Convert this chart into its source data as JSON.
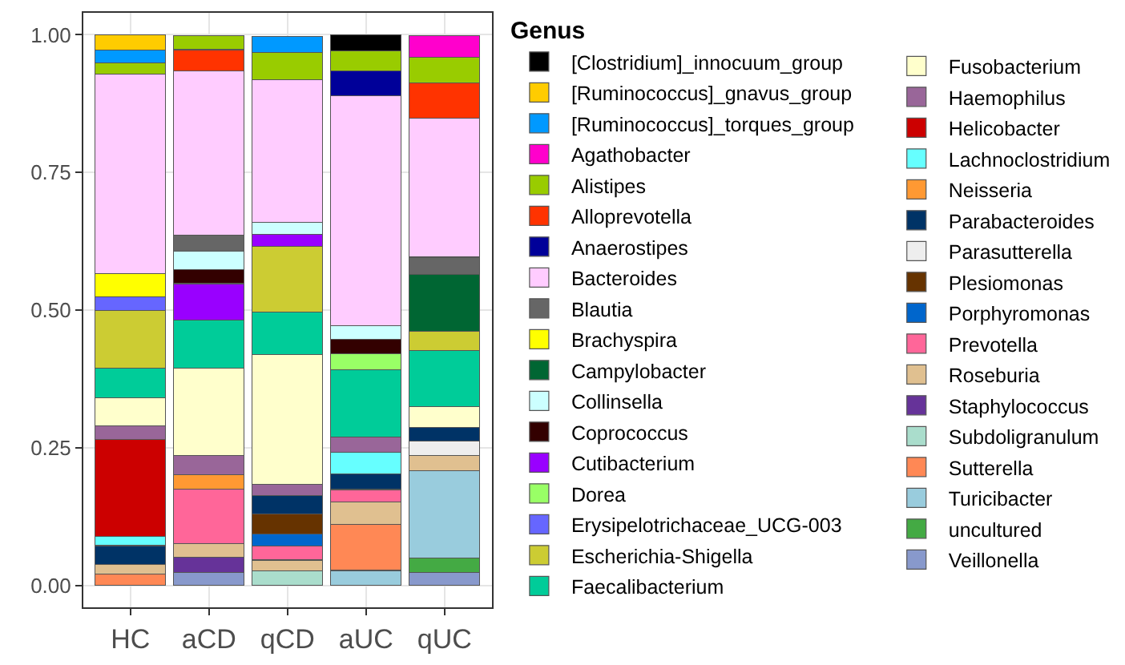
{
  "chart_data": {
    "type": "bar",
    "stacked": true,
    "legend_title": "Genus",
    "legend": "right",
    "grid": true,
    "categories": [
      "HC",
      "aCD",
      "qCD",
      "aUC",
      "qUC"
    ],
    "ylim": [
      -0.04,
      1.04
    ],
    "yticks": [
      {
        "value": 0,
        "label": "0.00"
      },
      {
        "value": 0.25,
        "label": "0.25"
      },
      {
        "value": 0.5,
        "label": "0.50"
      },
      {
        "value": 0.75,
        "label": "0.75"
      },
      {
        "value": 1,
        "label": "1.00"
      }
    ],
    "series": [
      {
        "name": "Veillonella",
        "color": "#8899cc",
        "values": [
          null,
          0.023,
          null,
          null,
          0.023
        ]
      },
      {
        "name": "uncultured",
        "color": "#44aa44",
        "values": [
          null,
          null,
          null,
          null,
          0.027
        ]
      },
      {
        "name": "Turicibacter",
        "color": "#99ccdd",
        "values": [
          null,
          null,
          null,
          0.027,
          0.158
        ]
      },
      {
        "name": "Sutterella",
        "color": "#ff8855",
        "values": [
          0.021,
          null,
          null,
          0.084,
          null
        ]
      },
      {
        "name": "Subdoligranulum",
        "color": "#aaddcc",
        "values": [
          null,
          null,
          0.026,
          null,
          null
        ]
      },
      {
        "name": "Staphylococcus",
        "color": "#663399",
        "values": [
          null,
          0.028,
          null,
          null,
          null
        ]
      },
      {
        "name": "Roseburia",
        "color": "#e0c090",
        "values": [
          0.017,
          0.025,
          0.02,
          0.04,
          0.028
        ]
      },
      {
        "name": "Prevotella",
        "color": "#ff6699",
        "values": [
          null,
          0.099,
          0.025,
          0.023,
          null
        ]
      },
      {
        "name": "Porphyromonas",
        "color": "#0066cc",
        "values": [
          null,
          null,
          0.022,
          null,
          null
        ]
      },
      {
        "name": "Plesiomonas",
        "color": "#663300",
        "values": [
          null,
          null,
          0.037,
          null,
          null
        ]
      },
      {
        "name": "Parasutterella",
        "color": "#eeeeee",
        "values": [
          null,
          null,
          null,
          null,
          0.026
        ]
      },
      {
        "name": "Parabacteroides",
        "color": "#003366",
        "values": [
          0.034,
          null,
          0.033,
          0.028,
          0.025
        ]
      },
      {
        "name": "Neisseria",
        "color": "#ff9933",
        "values": [
          null,
          0.026,
          null,
          null,
          null
        ]
      },
      {
        "name": "Lachnoclostridium",
        "color": "#66ffff",
        "values": [
          0.017,
          null,
          null,
          0.04,
          null
        ]
      },
      {
        "name": "Helicobacter",
        "color": "#cc0000",
        "values": [
          0.176,
          null,
          null,
          null,
          null
        ]
      },
      {
        "name": "Haemophilus",
        "color": "#996699",
        "values": [
          0.025,
          0.035,
          0.02,
          0.027,
          null
        ]
      },
      {
        "name": "Fusobacterium",
        "color": "#ffffcc",
        "values": [
          0.051,
          0.159,
          0.236,
          null,
          0.038
        ]
      },
      {
        "name": "Faecalibacterium",
        "color": "#00cc99",
        "values": [
          0.054,
          0.087,
          0.077,
          0.122,
          0.102
        ]
      },
      {
        "name": "Escherichia-Shigella",
        "color": "#cccc33",
        "values": [
          0.104,
          null,
          0.12,
          null,
          0.034
        ]
      },
      {
        "name": "Erysipelotrichaceae_UCG-003",
        "color": "#6666ff",
        "values": [
          0.025,
          null,
          null,
          null,
          null
        ]
      },
      {
        "name": "Dorea",
        "color": "#99ff66",
        "values": [
          null,
          null,
          null,
          0.03,
          null
        ]
      },
      {
        "name": "Cutibacterium",
        "color": "#9900ff",
        "values": [
          null,
          0.066,
          0.022,
          null,
          null
        ]
      },
      {
        "name": "Coprococcus",
        "color": "#330000",
        "values": [
          null,
          0.025,
          null,
          0.026,
          null
        ]
      },
      {
        "name": "Collinsella",
        "color": "#ccffff",
        "values": [
          null,
          0.034,
          0.021,
          0.025,
          null
        ]
      },
      {
        "name": "Campylobacter",
        "color": "#006633",
        "values": [
          null,
          null,
          null,
          null,
          0.104
        ]
      },
      {
        "name": "Brachyspira",
        "color": "#ffff00",
        "values": [
          0.042,
          null,
          null,
          null,
          null
        ]
      },
      {
        "name": "Blautia",
        "color": "#666666",
        "values": [
          null,
          0.029,
          null,
          null,
          0.031
        ]
      },
      {
        "name": "Bacteroides",
        "color": "#ffccff",
        "values": [
          0.363,
          0.298,
          0.259,
          0.417,
          0.253
        ]
      },
      {
        "name": "Anaerostipes",
        "color": "#000099",
        "values": [
          null,
          null,
          null,
          0.045,
          null
        ]
      },
      {
        "name": "Alloprevotella",
        "color": "#ff3300",
        "values": [
          null,
          0.039,
          null,
          null,
          0.064
        ]
      },
      {
        "name": "Alistipes",
        "color": "#99cc00",
        "values": [
          0.02,
          0.025,
          0.05,
          0.037,
          0.046
        ]
      },
      {
        "name": "Agathobacter",
        "color": "#ff00cc",
        "values": [
          null,
          null,
          null,
          null,
          0.039
        ]
      },
      {
        "name": "[Ruminococcus]_torques_group",
        "color": "#0099ff",
        "values": [
          0.023,
          null,
          0.029,
          null,
          null
        ]
      },
      {
        "name": "[Ruminococcus]_gnavus_group",
        "color": "#ffcc00",
        "values": [
          0.028,
          null,
          null,
          null,
          null
        ]
      },
      {
        "name": "[Clostridium]_innocuum_group",
        "color": "#000000",
        "values": [
          null,
          null,
          null,
          0.029,
          null
        ]
      }
    ]
  }
}
